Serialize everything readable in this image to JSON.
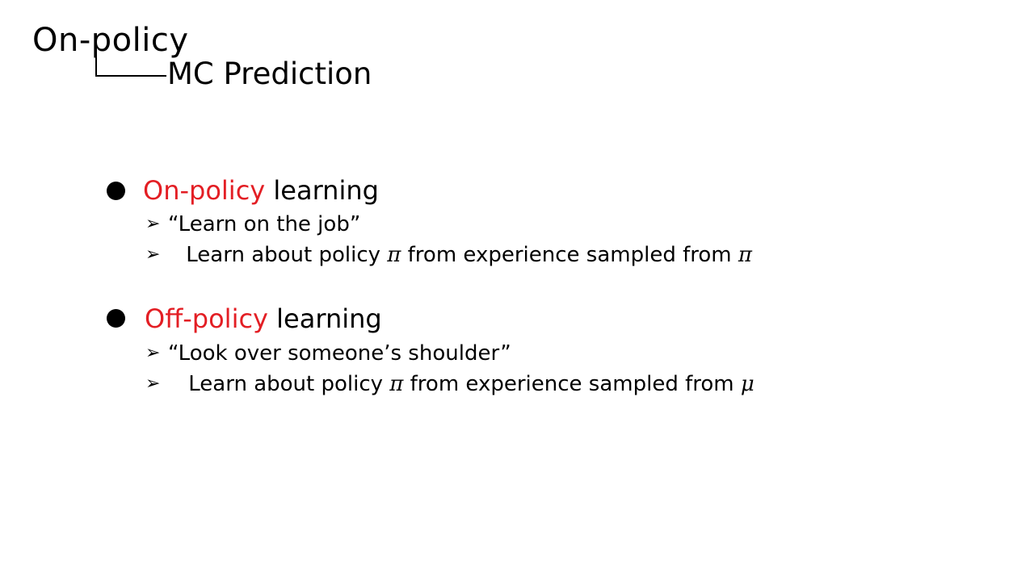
{
  "slide": {
    "title": "On-policy",
    "subtitle": "MC Prediction",
    "accent_color": "#e31e24",
    "sections": [
      {
        "heading_accent": "On-policy",
        "heading_rest": " learning",
        "items": [
          {
            "text": "“Learn on the job”"
          },
          {
            "prefix": "Learn about policy ",
            "sym1": "π",
            "middle": " from experience sampled from ",
            "sym2": "π"
          }
        ]
      },
      {
        "heading_accent": "Off-policy",
        "heading_rest": " learning",
        "items": [
          {
            "text": "“Look over someone’s shoulder”"
          },
          {
            "prefix": "Learn about policy ",
            "sym1": "π",
            "middle": " from experience sampled from ",
            "sym2": "μ"
          }
        ]
      }
    ]
  }
}
